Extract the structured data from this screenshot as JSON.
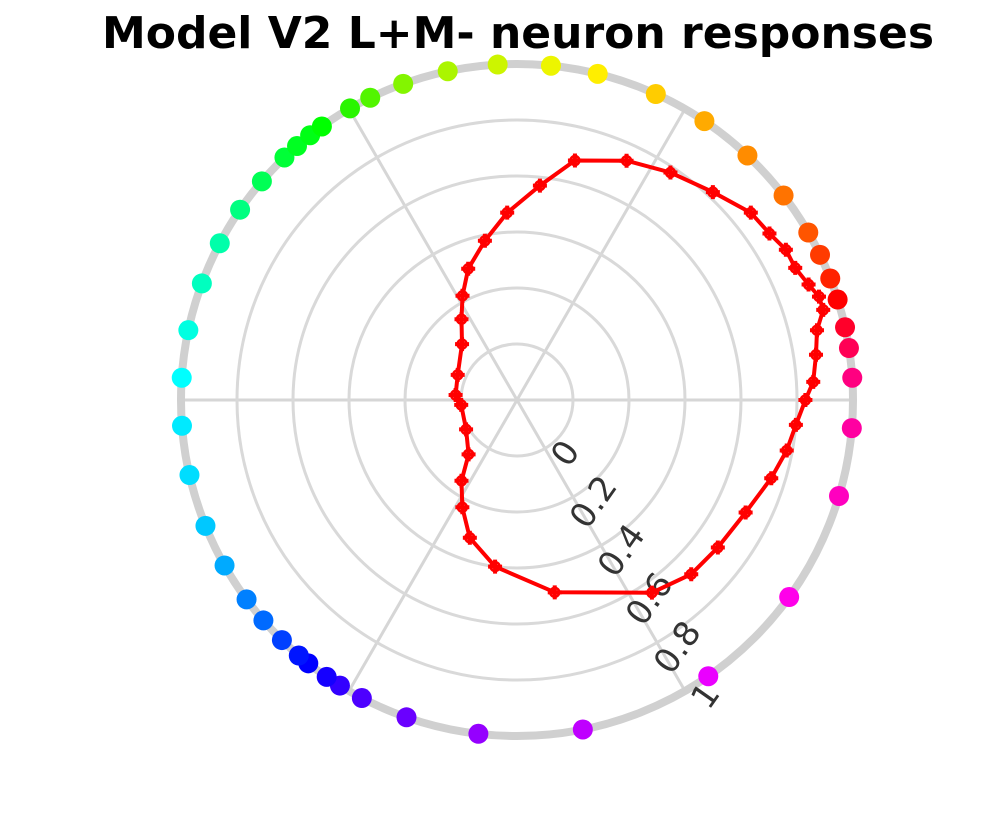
{
  "chart_data": {
    "type": "polar",
    "title": "Model V2 L+M- neuron responses",
    "rlim": [
      -0.2,
      1
    ],
    "rticks": [
      0,
      0.2,
      0.4,
      0.6,
      0.8,
      1
    ],
    "thetaticks": [
      0,
      60,
      120,
      180,
      240,
      300
    ],
    "grid": true,
    "series": [
      {
        "color": "#ff0000",
        "theta": [
          76.4,
          65.4,
          56.0,
          46.7,
          38.7,
          33.4,
          29.2,
          25.4,
          21.6,
          18.9,
          16.4,
          13.1,
          8.6,
          3.5,
          0,
          354.9,
          349.4,
          342.9,
          333.8,
          323.7,
          315,
          305,
          281.1,
          262.5,
          251.1,
          243,
          235.5,
          228.3,
          210,
          185,
          175.4,
          157,
          134.5,
          124.5,
          117.6,
          110.4,
          101.4,
          93,
          83.9
        ],
        "values": [
          0.68,
          0.74,
          0.78,
          0.82,
          0.87,
          0.88,
          0.9,
          0.9,
          0.92,
          0.94,
          0.94,
          0.9,
          0.88,
          0.86,
          0.83,
          0.8,
          0.78,
          0.75,
          0.71,
          0.69,
          0.68,
          0.64,
          0.5,
          0.4,
          0.32,
          0.23,
          0.15,
          0.06,
          0.01,
          0.0,
          0.02,
          0.03,
          0.08,
          0.15,
          0.22,
          0.3,
          0.38,
          0.47,
          0.57
        ]
      },
      {
        "theta": [
          93.3,
          84.2,
          76.1,
          65.6,
          56.1,
          46.7,
          37.5,
          29.9,
          25.6,
          21.2,
          17.4,
          12.5,
          8.9,
          3.8,
          355.2,
          343.4,
          324.1,
          304.7,
          281.3,
          263.4,
          250.8,
          242.5,
          238.2,
          235.5,
          231.6,
          229.5,
          225.6,
          221,
          216.4,
          209.5,
          202,
          192.9,
          184.4,
          176.2,
          168,
          159.7,
          152.2,
          145.5,
          139.4,
          133.8,
          130.9,
          128,
          125.5,
          119.8,
          115.9,
          109.8,
          101.9
        ],
        "values": [
          1,
          1,
          1,
          1,
          1,
          1,
          1,
          1,
          1,
          1,
          1,
          1,
          1,
          1,
          1,
          1,
          1,
          1,
          1,
          1,
          1,
          1,
          1,
          1,
          1,
          1,
          1,
          1,
          1,
          1,
          1,
          1,
          1,
          1,
          1,
          1,
          1,
          1,
          1,
          1,
          1,
          1,
          1,
          1,
          1,
          1,
          1
        ],
        "colors": [
          "hsl(70,100%,48%)",
          "hsl(62,100%,48%)",
          "hsl(56,100%,50%)",
          "hsl(48,100%,50%)",
          "hsl(40,100%,50%)",
          "hsl(33,100%,50%)",
          "hsl(27,100%,50%)",
          "hsl(20,100%,50%)",
          "hsl(14,100%,50%)",
          "hsl(8,100%,50%)",
          "hsl(0,100%,50%)",
          "hsl(350,100%,50%)",
          "hsl(340,100%,50%)",
          "hsl(330,100%,50%)",
          "hsl(322,100%,50%)",
          "hsl(315,100%,50%)",
          "hsl(305,100%,50%)",
          "hsl(295,100%,50%)",
          "hsl(285,100%,50%)",
          "hsl(275,100%,50%)",
          "hsl(265,100%,50%)",
          "hsl(258,100%,50%)",
          "hsl(252,100%,50%)",
          "hsl(245,100%,50%)",
          "hsl(240,100%,50%)",
          "hsl(235,100%,50%)",
          "hsl(225,100%,50%)",
          "hsl(215,100%,50%)",
          "hsl(210,100%,50%)",
          "hsl(200,100%,50%)",
          "hsl(193,100%,50%)",
          "hsl(188,100%,50%)",
          "hsl(185,100%,50%)",
          "hsl(180,100%,50%)",
          "hsl(173,100%,50%)",
          "hsl(165,100%,50%)",
          "hsl(160,100%,50%)",
          "hsl(150,100%,50%)",
          "hsl(140,100%,50%)",
          "hsl(133,100%,50%)",
          "hsl(128,100%,50%)",
          "hsl(125,100%,50%)",
          "hsl(120,100%,50%)",
          "hsl(110,100%,48%)",
          "hsl(100,100%,48%)",
          "hsl(88,100%,48%)",
          "hsl(78,100%,48%)"
        ]
      }
    ]
  }
}
